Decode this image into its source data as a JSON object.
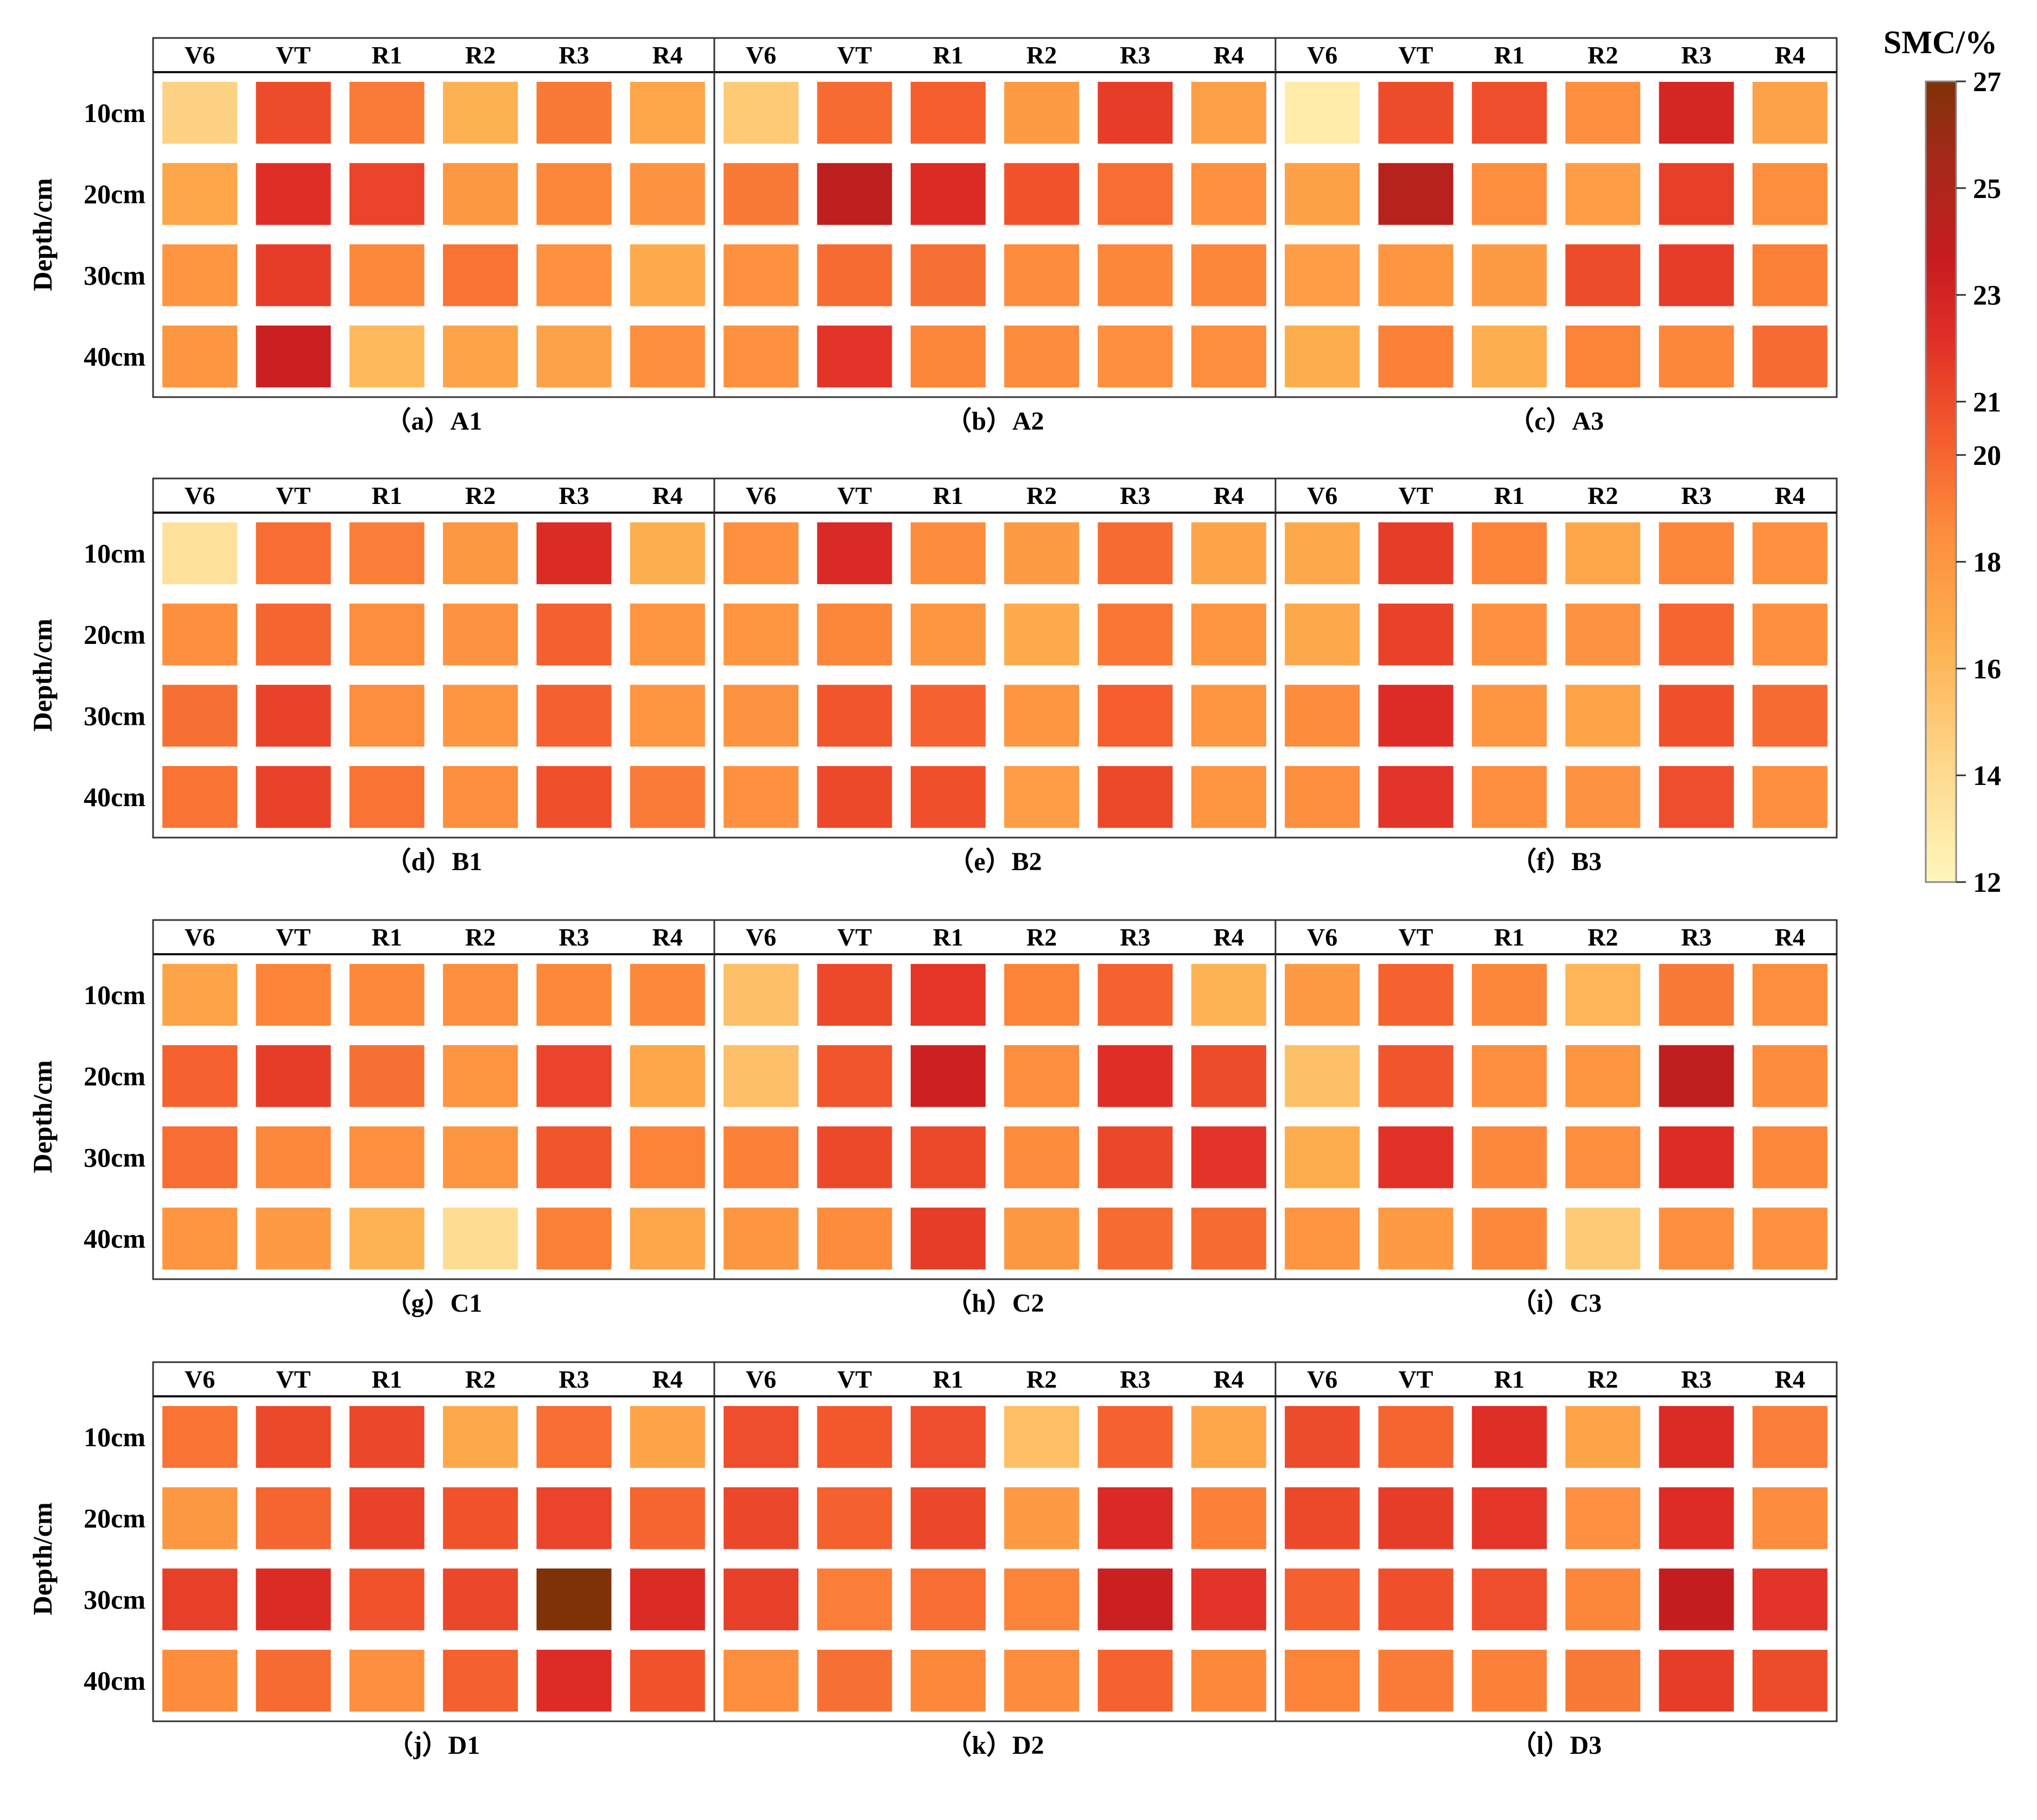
{
  "chart_data": {
    "type": "heatmap",
    "value_label": "SMC/%",
    "colorbar": {
      "title": "SMC/%",
      "min": 12,
      "max": 27,
      "ticks": [
        12,
        14,
        16,
        18,
        20,
        21,
        23,
        25,
        27
      ]
    },
    "ylabel": "Depth/cm",
    "columns": [
      "V6",
      "VT",
      "R1",
      "R2",
      "R3",
      "R4"
    ],
    "rows": [
      "10cm",
      "20cm",
      "30cm",
      "40cm"
    ],
    "panels": [
      {
        "label": "（a）A1",
        "values": [
          [
            14.5,
            21.0,
            19.2,
            16.4,
            19.3,
            17.0
          ],
          [
            17.1,
            22.3,
            21.3,
            17.9,
            18.8,
            18.2
          ],
          [
            18.1,
            21.6,
            18.7,
            19.5,
            18.3,
            16.8
          ],
          [
            18.0,
            23.5,
            16.0,
            17.2,
            17.3,
            18.4
          ]
        ]
      },
      {
        "label": "（b）A2",
        "values": [
          [
            15.0,
            19.8,
            20.3,
            17.7,
            21.6,
            17.5
          ],
          [
            19.3,
            24.2,
            22.5,
            20.7,
            19.7,
            18.3
          ],
          [
            18.3,
            19.8,
            19.6,
            18.6,
            18.8,
            18.8
          ],
          [
            18.3,
            22.0,
            18.8,
            18.6,
            18.4,
            18.5
          ]
        ]
      },
      {
        "label": "（c）A3",
        "values": [
          [
            12.8,
            21.0,
            20.9,
            18.4,
            22.9,
            17.3
          ],
          [
            17.4,
            24.5,
            18.5,
            17.6,
            21.5,
            18.5
          ],
          [
            17.6,
            18.1,
            17.7,
            21.0,
            21.6,
            19.0
          ],
          [
            16.7,
            19.0,
            16.6,
            18.9,
            18.8,
            19.8
          ]
        ]
      },
      {
        "label": "（d）B1",
        "values": [
          [
            13.5,
            19.7,
            19.1,
            17.9,
            22.5,
            16.6
          ],
          [
            18.4,
            20.0,
            18.5,
            18.2,
            20.2,
            18.1
          ],
          [
            19.6,
            21.4,
            18.5,
            18.0,
            20.2,
            18.1
          ],
          [
            19.5,
            21.4,
            19.5,
            18.4,
            20.8,
            19.2
          ]
        ]
      },
      {
        "label": "（e）B2",
        "values": [
          [
            18.3,
            22.6,
            18.6,
            17.7,
            19.8,
            17.2
          ],
          [
            18.1,
            18.8,
            18.0,
            16.8,
            19.4,
            18.1
          ],
          [
            18.2,
            20.6,
            20.1,
            18.0,
            20.3,
            18.0
          ],
          [
            18.3,
            21.1,
            20.8,
            17.6,
            21.1,
            18.1
          ]
        ]
      },
      {
        "label": "（f）B3",
        "values": [
          [
            16.9,
            21.6,
            18.9,
            17.0,
            18.8,
            18.3
          ],
          [
            16.9,
            21.4,
            18.3,
            18.2,
            20.0,
            18.4
          ],
          [
            18.6,
            22.4,
            18.1,
            17.2,
            20.8,
            19.8
          ],
          [
            18.4,
            22.0,
            18.5,
            18.2,
            20.9,
            18.4
          ]
        ]
      },
      {
        "label": "（g）C1",
        "values": [
          [
            17.2,
            18.9,
            18.7,
            18.4,
            18.7,
            18.7
          ],
          [
            20.1,
            21.6,
            19.6,
            18.1,
            21.3,
            17.0
          ],
          [
            19.7,
            18.7,
            18.3,
            18.0,
            20.6,
            18.9
          ],
          [
            18.1,
            17.8,
            16.3,
            13.9,
            19.0,
            17.0
          ]
        ]
      },
      {
        "label": "（h）C2",
        "values": [
          [
            15.6,
            21.1,
            21.9,
            18.9,
            20.1,
            16.3
          ],
          [
            15.6,
            20.6,
            23.3,
            18.5,
            22.3,
            21.0
          ],
          [
            19.0,
            21.1,
            21.1,
            18.6,
            21.2,
            22.0
          ],
          [
            18.0,
            18.6,
            21.6,
            17.9,
            19.8,
            19.8
          ]
        ]
      },
      {
        "label": "（i）C3",
        "values": [
          [
            17.8,
            20.1,
            18.8,
            16.2,
            19.3,
            18.5
          ],
          [
            15.6,
            20.6,
            18.5,
            18.1,
            24.1,
            18.6
          ],
          [
            16.7,
            22.1,
            18.7,
            18.4,
            22.4,
            18.7
          ],
          [
            18.1,
            17.8,
            18.7,
            15.0,
            18.4,
            18.3
          ]
        ]
      },
      {
        "label": "（j）D1",
        "values": [
          [
            19.5,
            21.1,
            21.2,
            16.9,
            19.7,
            17.2
          ],
          [
            17.9,
            20.0,
            21.4,
            20.7,
            21.3,
            20.0
          ],
          [
            21.5,
            22.5,
            20.7,
            21.2,
            27.0,
            22.5
          ],
          [
            18.6,
            19.8,
            18.4,
            20.2,
            22.4,
            20.7
          ]
        ]
      },
      {
        "label": "（k）D2",
        "values": [
          [
            20.9,
            20.5,
            20.9,
            15.7,
            20.1,
            17.0
          ],
          [
            21.2,
            20.2,
            21.2,
            17.8,
            22.6,
            19.0
          ],
          [
            21.5,
            19.1,
            19.7,
            18.9,
            23.4,
            22.0
          ],
          [
            18.5,
            19.6,
            18.7,
            18.6,
            20.1,
            18.7
          ]
        ]
      },
      {
        "label": "（l）D3",
        "values": [
          [
            21.0,
            20.0,
            22.3,
            17.2,
            22.5,
            19.1
          ],
          [
            21.1,
            21.6,
            21.9,
            18.3,
            22.4,
            18.6
          ],
          [
            20.2,
            20.8,
            20.9,
            18.8,
            23.8,
            22.0
          ],
          [
            18.9,
            19.2,
            19.0,
            19.3,
            21.6,
            21.0
          ]
        ]
      }
    ]
  }
}
